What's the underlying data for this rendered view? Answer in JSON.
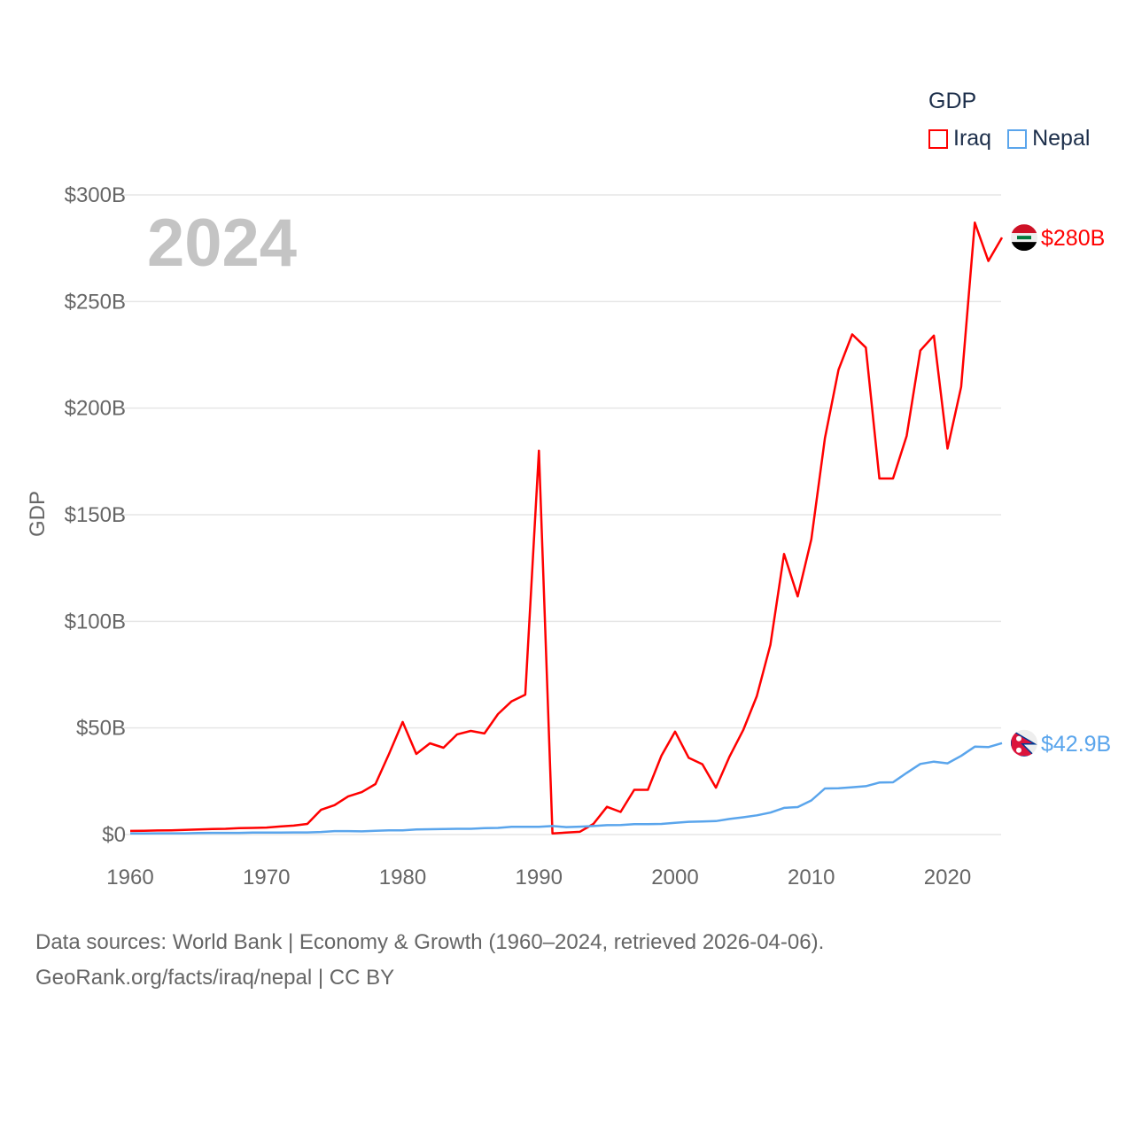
{
  "chart_data": {
    "type": "line",
    "title": "GDP",
    "watermark_year": "2024",
    "ylabel": "GDP",
    "xlabel": "",
    "xlim": [
      1960,
      2024
    ],
    "ylim": [
      0,
      300
    ],
    "x_ticks": [
      1960,
      1970,
      1980,
      1990,
      2000,
      2010,
      2020
    ],
    "x_tick_labels": [
      "1960",
      "1970",
      "1980",
      "1990",
      "2000",
      "2010",
      "2020"
    ],
    "y_ticks": [
      0,
      50,
      100,
      150,
      200,
      250,
      300
    ],
    "y_tick_labels": [
      "$0",
      "$50B",
      "$100B",
      "$150B",
      "$200B",
      "$250B",
      "$300B"
    ],
    "grid": true,
    "legend_position": "top-right",
    "x": [
      1960,
      1961,
      1962,
      1963,
      1964,
      1965,
      1966,
      1967,
      1968,
      1969,
      1970,
      1971,
      1972,
      1973,
      1974,
      1975,
      1976,
      1977,
      1978,
      1979,
      1980,
      1981,
      1982,
      1983,
      1984,
      1985,
      1986,
      1987,
      1988,
      1989,
      1990,
      1991,
      1992,
      1993,
      1994,
      1995,
      1996,
      1997,
      1998,
      1999,
      2000,
      2001,
      2002,
      2003,
      2004,
      2005,
      2006,
      2007,
      2008,
      2009,
      2010,
      2011,
      2012,
      2013,
      2014,
      2015,
      2016,
      2017,
      2018,
      2019,
      2020,
      2021,
      2022,
      2023,
      2024
    ],
    "series": [
      {
        "name": "Iraq",
        "color": "#ff0000",
        "end_label": "$280B",
        "flag": "iraq-flag",
        "values": [
          1.7,
          1.8,
          1.9,
          2.0,
          2.2,
          2.4,
          2.6,
          2.7,
          3.0,
          3.1,
          3.3,
          3.8,
          4.2,
          5.0,
          11.6,
          13.8,
          17.9,
          19.9,
          23.7,
          37.8,
          52.8,
          37.8,
          42.8,
          40.7,
          47.0,
          48.6,
          47.4,
          56.5,
          62.5,
          65.6,
          180.0,
          0.5,
          0.9,
          1.3,
          5.0,
          13.0,
          10.6,
          21.0,
          21.0,
          37.0,
          48.3,
          36.0,
          33.0,
          22.0,
          36.6,
          49.0,
          65.0,
          89.0,
          131.6,
          111.7,
          138.5,
          185.8,
          218.0,
          234.6,
          228.4,
          167.0,
          167.0,
          187.0,
          227.0,
          234.0,
          181.0,
          210.0,
          287.0,
          269.0,
          280.0
        ]
      },
      {
        "name": "Nepal",
        "color": "#5aa5ec",
        "end_label": "$42.9B",
        "flag": "nepal-flag",
        "values": [
          0.5,
          0.5,
          0.6,
          0.6,
          0.6,
          0.7,
          0.8,
          0.8,
          0.8,
          0.9,
          0.9,
          0.9,
          1.0,
          1.0,
          1.2,
          1.6,
          1.6,
          1.5,
          1.8,
          2.0,
          2.0,
          2.4,
          2.5,
          2.6,
          2.7,
          2.7,
          3.0,
          3.1,
          3.6,
          3.6,
          3.6,
          4.0,
          3.5,
          3.7,
          4.0,
          4.4,
          4.5,
          4.9,
          4.9,
          5.0,
          5.5,
          6.0,
          6.1,
          6.3,
          7.3,
          8.1,
          9.0,
          10.3,
          12.5,
          12.9,
          16.0,
          21.6,
          21.7,
          22.2,
          22.7,
          24.4,
          24.5,
          28.9,
          33.1,
          34.2,
          33.4,
          36.9,
          41.2,
          41.0,
          42.9
        ]
      }
    ]
  },
  "footer": {
    "line1": "Data sources: World Bank | Economy & Growth (1960–2024, retrieved 2026-04-06).",
    "line2": "GeoRank.org/facts/iraq/nepal | CC BY"
  }
}
